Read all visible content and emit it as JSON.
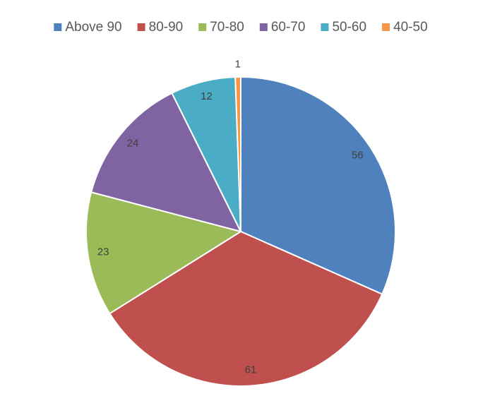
{
  "chart_data": {
    "type": "pie",
    "categories": [
      "Above 90",
      "80-90",
      "70-80",
      "60-70",
      "50-60",
      "40-50"
    ],
    "values": [
      56,
      61,
      23,
      24,
      12,
      1
    ],
    "colors": [
      "#4f81bd",
      "#c0504d",
      "#9bbb59",
      "#8064a2",
      "#4bacc6",
      "#f79646"
    ],
    "legend": "top"
  }
}
